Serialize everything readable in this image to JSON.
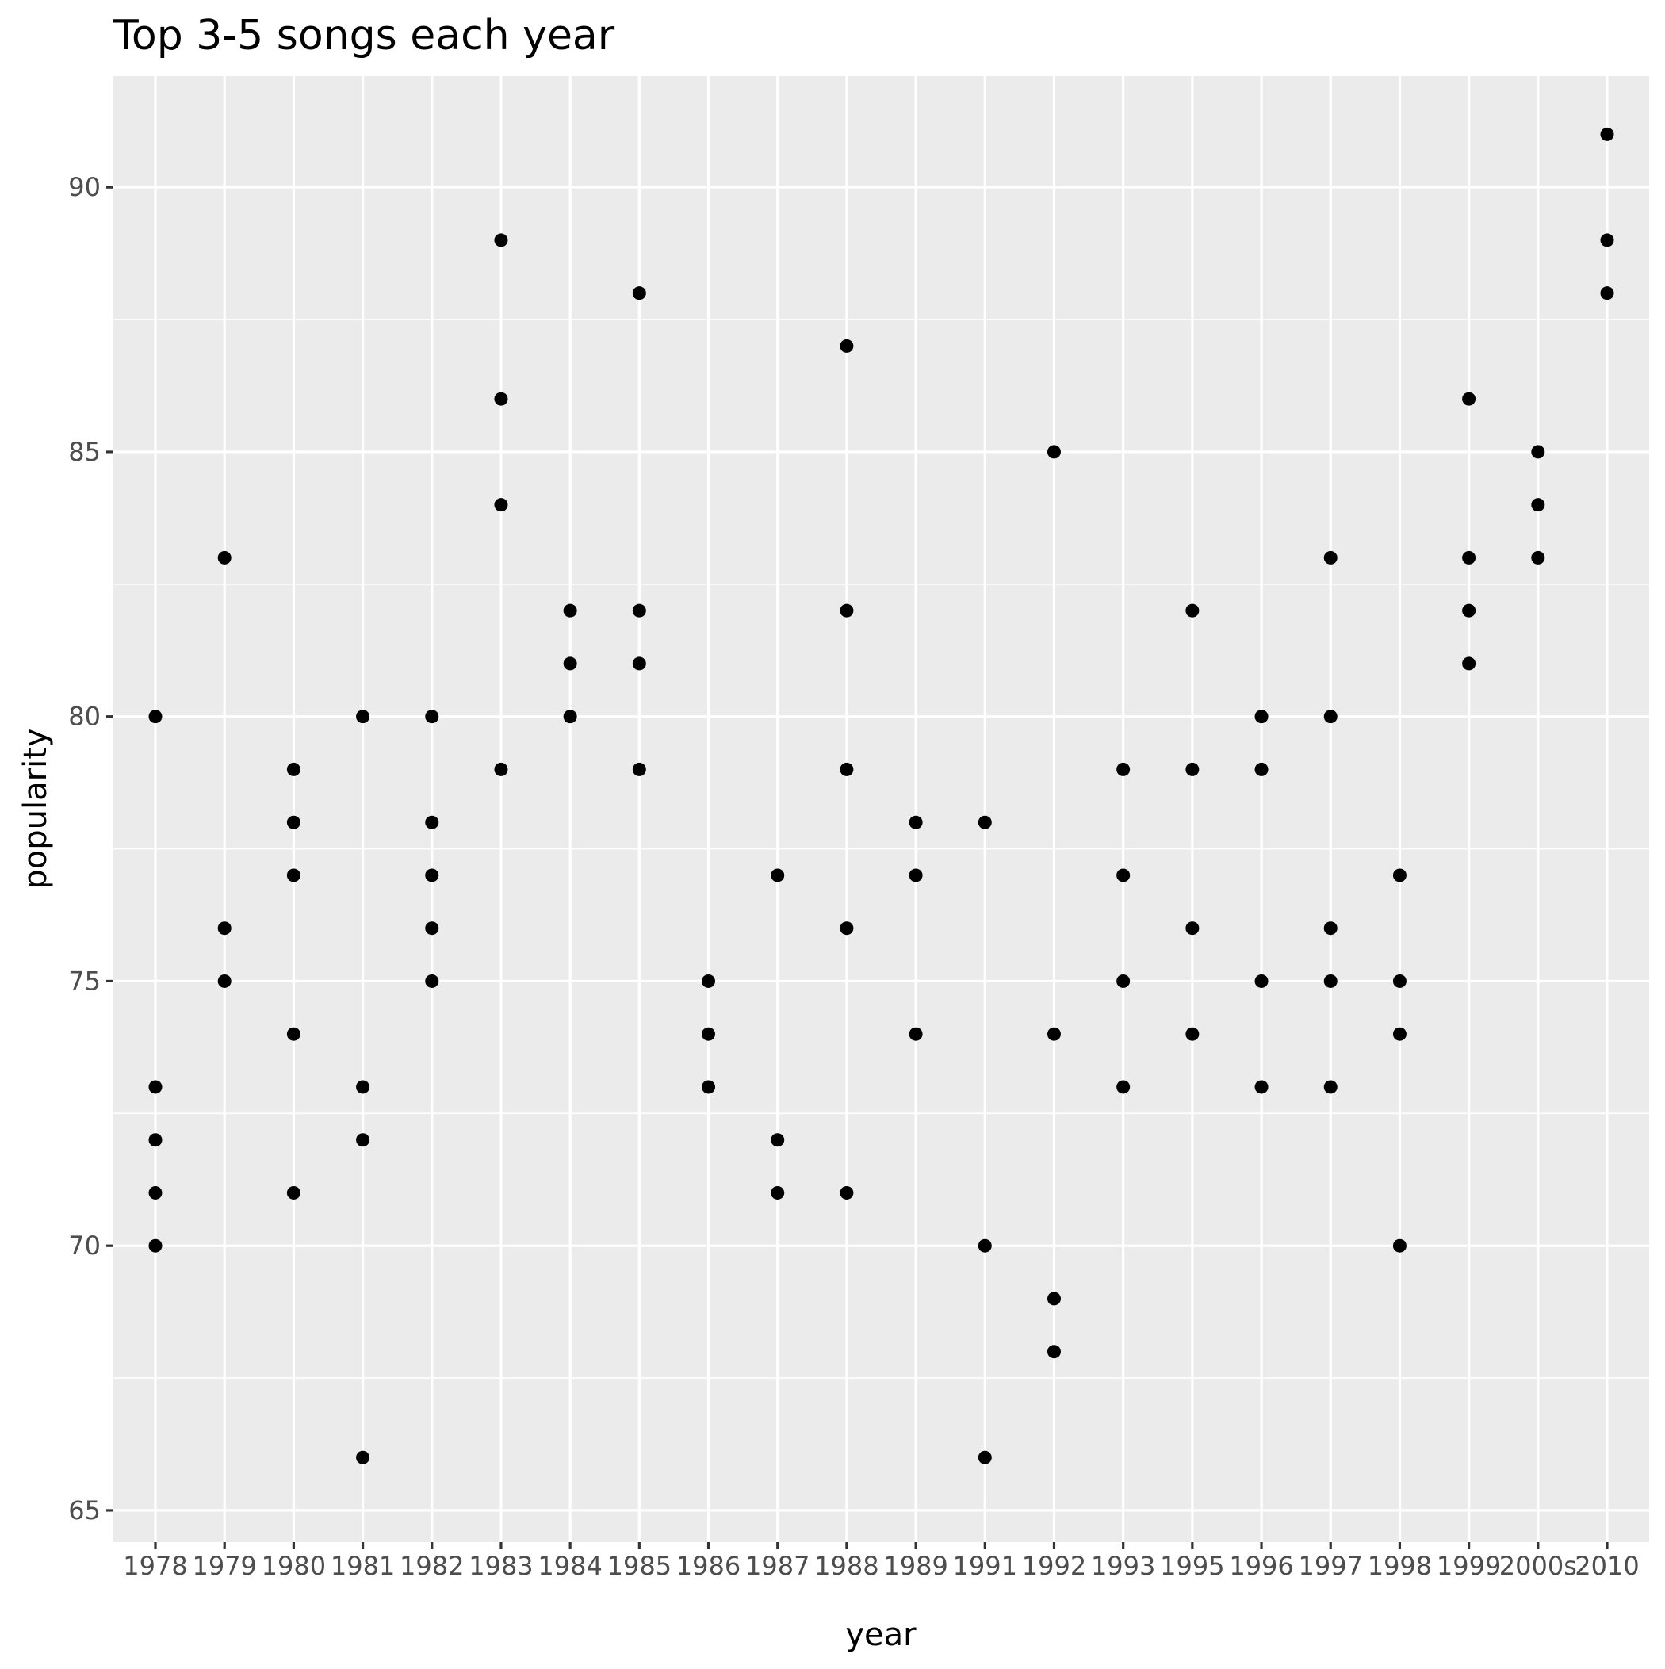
{
  "chart_data": {
    "type": "scatter",
    "title": "Top 3-5 songs each year",
    "xlabel": "year",
    "ylabel": "popularity",
    "x_scale": "discrete",
    "categories": [
      "1978",
      "1979",
      "1980",
      "1981",
      "1982",
      "1983",
      "1984",
      "1985",
      "1986",
      "1987",
      "1988",
      "1989",
      "1991",
      "1992",
      "1993",
      "1995",
      "1996",
      "1997",
      "1998",
      "1999",
      "2000s",
      "2010"
    ],
    "ylim": [
      64.4,
      92.1
    ],
    "yticks": [
      65,
      70,
      75,
      80,
      85,
      90
    ],
    "grid": true,
    "legend": "none",
    "point_color": "#000000",
    "panel_color": "#ebebeb",
    "points": [
      {
        "x": "1978",
        "y": 80
      },
      {
        "x": "1978",
        "y": 73
      },
      {
        "x": "1978",
        "y": 72
      },
      {
        "x": "1978",
        "y": 71
      },
      {
        "x": "1978",
        "y": 70
      },
      {
        "x": "1979",
        "y": 83
      },
      {
        "x": "1979",
        "y": 76
      },
      {
        "x": "1979",
        "y": 75
      },
      {
        "x": "1980",
        "y": 79
      },
      {
        "x": "1980",
        "y": 78
      },
      {
        "x": "1980",
        "y": 77
      },
      {
        "x": "1980",
        "y": 74
      },
      {
        "x": "1980",
        "y": 71
      },
      {
        "x": "1981",
        "y": 80
      },
      {
        "x": "1981",
        "y": 73
      },
      {
        "x": "1981",
        "y": 72
      },
      {
        "x": "1981",
        "y": 66
      },
      {
        "x": "1982",
        "y": 80
      },
      {
        "x": "1982",
        "y": 78
      },
      {
        "x": "1982",
        "y": 77
      },
      {
        "x": "1982",
        "y": 76
      },
      {
        "x": "1982",
        "y": 75
      },
      {
        "x": "1983",
        "y": 89
      },
      {
        "x": "1983",
        "y": 86
      },
      {
        "x": "1983",
        "y": 84
      },
      {
        "x": "1983",
        "y": 79
      },
      {
        "x": "1984",
        "y": 82
      },
      {
        "x": "1984",
        "y": 81
      },
      {
        "x": "1984",
        "y": 80
      },
      {
        "x": "1985",
        "y": 88
      },
      {
        "x": "1985",
        "y": 82
      },
      {
        "x": "1985",
        "y": 81
      },
      {
        "x": "1985",
        "y": 79
      },
      {
        "x": "1986",
        "y": 75
      },
      {
        "x": "1986",
        "y": 74
      },
      {
        "x": "1986",
        "y": 73
      },
      {
        "x": "1987",
        "y": 77
      },
      {
        "x": "1987",
        "y": 72
      },
      {
        "x": "1987",
        "y": 71
      },
      {
        "x": "1988",
        "y": 87
      },
      {
        "x": "1988",
        "y": 82
      },
      {
        "x": "1988",
        "y": 79
      },
      {
        "x": "1988",
        "y": 76
      },
      {
        "x": "1988",
        "y": 71
      },
      {
        "x": "1989",
        "y": 78
      },
      {
        "x": "1989",
        "y": 77
      },
      {
        "x": "1989",
        "y": 74
      },
      {
        "x": "1991",
        "y": 78
      },
      {
        "x": "1991",
        "y": 70
      },
      {
        "x": "1991",
        "y": 66
      },
      {
        "x": "1992",
        "y": 85
      },
      {
        "x": "1992",
        "y": 74
      },
      {
        "x": "1992",
        "y": 69
      },
      {
        "x": "1992",
        "y": 68
      },
      {
        "x": "1993",
        "y": 79
      },
      {
        "x": "1993",
        "y": 77
      },
      {
        "x": "1993",
        "y": 75
      },
      {
        "x": "1993",
        "y": 73
      },
      {
        "x": "1995",
        "y": 82
      },
      {
        "x": "1995",
        "y": 79
      },
      {
        "x": "1995",
        "y": 76
      },
      {
        "x": "1995",
        "y": 74
      },
      {
        "x": "1996",
        "y": 80
      },
      {
        "x": "1996",
        "y": 79
      },
      {
        "x": "1996",
        "y": 75
      },
      {
        "x": "1996",
        "y": 73
      },
      {
        "x": "1997",
        "y": 83
      },
      {
        "x": "1997",
        "y": 80
      },
      {
        "x": "1997",
        "y": 76
      },
      {
        "x": "1997",
        "y": 75
      },
      {
        "x": "1997",
        "y": 73
      },
      {
        "x": "1998",
        "y": 77
      },
      {
        "x": "1998",
        "y": 75
      },
      {
        "x": "1998",
        "y": 74
      },
      {
        "x": "1998",
        "y": 70
      },
      {
        "x": "1999",
        "y": 86
      },
      {
        "x": "1999",
        "y": 83
      },
      {
        "x": "1999",
        "y": 82
      },
      {
        "x": "1999",
        "y": 81
      },
      {
        "x": "2000s",
        "y": 85
      },
      {
        "x": "2000s",
        "y": 84
      },
      {
        "x": "2000s",
        "y": 83
      },
      {
        "x": "2010",
        "y": 91
      },
      {
        "x": "2010",
        "y": 89
      },
      {
        "x": "2010",
        "y": 88
      }
    ]
  }
}
